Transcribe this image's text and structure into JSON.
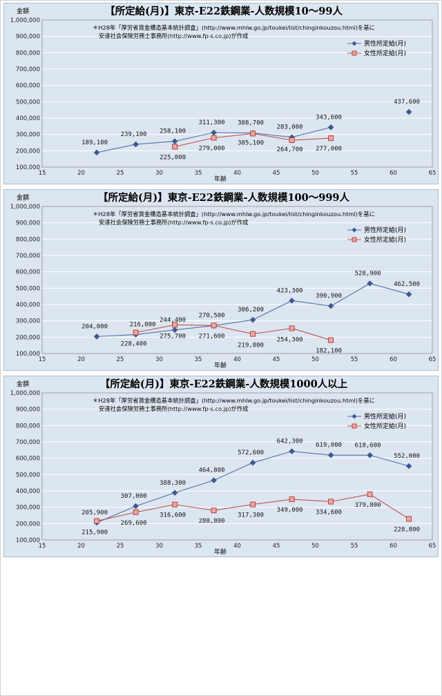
{
  "chart_data": [
    {
      "type": "line",
      "title": "【所定給(月)】東京-E22鉄鋼業-人数規模10～99人",
      "note_lines": [
        "＊H28年「厚労省賃金構造基本統計調査」(http://www.mhlw.go.jp/toukei/list/chinginkouzou.html)を基に",
        "安達社会保険労務士事務所(http://www.fp-s.co.jp)が作成"
      ],
      "ylabel": "金額",
      "xlabel": "年齢",
      "xlim": [
        15,
        65
      ],
      "ylim": [
        100000,
        1000000
      ],
      "xticks": [
        "15",
        "20",
        "25",
        "30",
        "35",
        "40",
        "45",
        "50",
        "55",
        "60",
        "65"
      ],
      "yticks": [
        "100,000",
        "200,000",
        "300,000",
        "400,000",
        "500,000",
        "600,000",
        "700,000",
        "800,000",
        "900,000",
        "1,000,000"
      ],
      "series": [
        {
          "name": "男性所定給(月)",
          "color": "#4f6fa8",
          "x": [
            22,
            27,
            32,
            37,
            42,
            47,
            52,
            62
          ],
          "values": [
            189100,
            239100,
            258100,
            311300,
            308700,
            283000,
            343600,
            437600
          ],
          "labels": [
            "189,100",
            "239,100",
            "258,100",
            "311,300",
            "308,700",
            "283,000",
            "343,600",
            "437,600"
          ],
          "segments": [
            [
              0,
              6
            ]
          ]
        },
        {
          "name": "女性所定給(月)",
          "color": "#c0504d",
          "x": [
            32,
            37,
            42,
            47,
            52
          ],
          "values": [
            225000,
            279000,
            305100,
            264700,
            277000
          ],
          "labels": [
            "225,000",
            "279,000",
            "305,100",
            "264,700",
            "277,000"
          ],
          "segments": [
            [
              0,
              4
            ]
          ]
        }
      ]
    },
    {
      "type": "line",
      "title": "【所定給(月)】東京-E22鉄鋼業-人数規模100～999人",
      "note_lines": [
        "＊H28年「厚労省賃金構造基本統計調査」(http://www.mhlw.go.jp/toukei/list/chinginkouzou.html)を基に",
        "安達社会保険労務士事務所(http://www.fp-s.co.jp)が作成"
      ],
      "ylabel": "金額",
      "xlabel": "年齢",
      "xlim": [
        15,
        65
      ],
      "ylim": [
        100000,
        1000000
      ],
      "xticks": [
        "15",
        "20",
        "25",
        "30",
        "35",
        "40",
        "45",
        "50",
        "55",
        "60",
        "65"
      ],
      "yticks": [
        "100,000",
        "200,000",
        "300,000",
        "400,000",
        "500,000",
        "600,000",
        "700,000",
        "800,000",
        "900,000",
        "1,000,000"
      ],
      "series": [
        {
          "name": "男性所定給(月)",
          "color": "#4f6fa8",
          "x": [
            22,
            27,
            32,
            37,
            42,
            47,
            52,
            57,
            62
          ],
          "values": [
            204000,
            216000,
            244400,
            270500,
            306200,
            423300,
            390900,
            528900,
            462500
          ],
          "labels": [
            "204,000",
            "216,000",
            "244,400",
            "270,500",
            "306,200",
            "423,300",
            "390,900",
            "528,900",
            "462,500"
          ],
          "segments": [
            [
              0,
              8
            ]
          ]
        },
        {
          "name": "女性所定給(月)",
          "color": "#c0504d",
          "x": [
            27,
            32,
            37,
            42,
            47,
            52
          ],
          "values": [
            228400,
            275700,
            271600,
            219800,
            254300,
            182100
          ],
          "labels": [
            "228,400",
            "275,700",
            "271,600",
            "219,800",
            "254,300",
            "182,100"
          ],
          "segments": [
            [
              0,
              5
            ]
          ]
        }
      ]
    },
    {
      "type": "line",
      "title": "【所定給(月)】東京-E22鉄鋼業-人数規模1000人以上",
      "note_lines": [
        "＊H28年「厚労省賃金構造基本統計調査」(http://www.mhlw.go.jp/toukei/list/chinginkouzou.html)を基に",
        "安達社会保険労務士事務所(http://www.fp-s.co.jp)が作成"
      ],
      "ylabel": "金額",
      "xlabel": "年齢",
      "xlim": [
        15,
        65
      ],
      "ylim": [
        100000,
        1000000
      ],
      "xticks": [
        "15",
        "20",
        "25",
        "30",
        "35",
        "40",
        "45",
        "50",
        "55",
        "60",
        "65"
      ],
      "yticks": [
        "100,000",
        "200,000",
        "300,000",
        "400,000",
        "500,000",
        "600,000",
        "700,000",
        "800,000",
        "900,000",
        "1,000,000"
      ],
      "series": [
        {
          "name": "男性所定給(月)",
          "color": "#4f6fa8",
          "x": [
            22,
            27,
            32,
            37,
            42,
            47,
            52,
            57,
            62
          ],
          "values": [
            205900,
            307000,
            388300,
            464800,
            572600,
            642300,
            619000,
            618600,
            552000
          ],
          "labels": [
            "205,900",
            "307,000",
            "388,300",
            "464,800",
            "572,600",
            "642,300",
            "619,000",
            "618,600",
            "552,000"
          ],
          "segments": [
            [
              0,
              8
            ]
          ]
        },
        {
          "name": "女性所定給(月)",
          "color": "#c0504d",
          "x": [
            22,
            27,
            32,
            37,
            42,
            47,
            52,
            57,
            62
          ],
          "values": [
            215900,
            269600,
            316600,
            280800,
            317300,
            349000,
            334600,
            379800,
            228800
          ],
          "labels": [
            "215,900",
            "269,600",
            "316,600",
            "280,800",
            "317,300",
            "349,000",
            "334,600",
            "379,800",
            "228,800"
          ],
          "segments": [
            [
              0,
              8
            ]
          ]
        }
      ]
    }
  ]
}
